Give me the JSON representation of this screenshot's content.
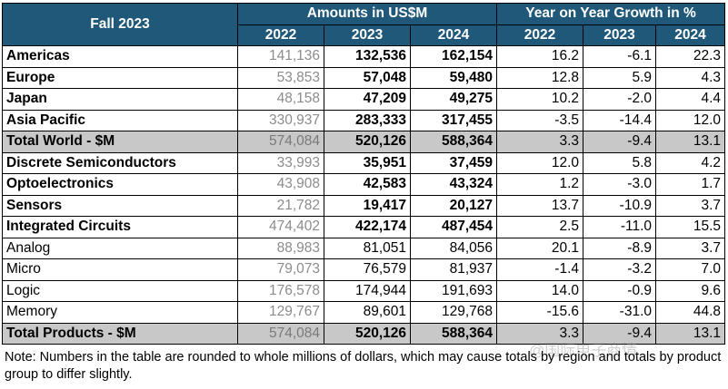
{
  "title": "Fall 2023",
  "group_amounts": "Amounts in US$M",
  "group_growth": "Year on Year Growth in %",
  "years": [
    "2022",
    "2023",
    "2024"
  ],
  "growth_years": [
    "2022",
    "2023",
    "2024"
  ],
  "rows": [
    {
      "label": "Americas",
      "a2022": "141,136",
      "a2023": "132,536",
      "a2024": "162,154",
      "g2022": "16.2",
      "g2023": "-6.1",
      "g2024": "22.3"
    },
    {
      "label": "Europe",
      "a2022": "53,853",
      "a2023": "57,048",
      "a2024": "59,480",
      "g2022": "12.8",
      "g2023": "5.9",
      "g2024": "4.3"
    },
    {
      "label": "Japan",
      "a2022": "48,158",
      "a2023": "47,209",
      "a2024": "49,275",
      "g2022": "10.2",
      "g2023": "-2.0",
      "g2024": "4.4"
    },
    {
      "label": "Asia Pacific",
      "a2022": "330,937",
      "a2023": "283,333",
      "a2024": "317,455",
      "g2022": "-3.5",
      "g2023": "-14.4",
      "g2024": "12.0"
    },
    {
      "label": "Total World - $M",
      "a2022": "574,084",
      "a2023": "520,126",
      "a2024": "588,364",
      "g2022": "3.3",
      "g2023": "-9.4",
      "g2024": "13.1"
    },
    {
      "label": "Discrete Semiconductors",
      "a2022": "33,993",
      "a2023": "35,951",
      "a2024": "37,459",
      "g2022": "12.0",
      "g2023": "5.8",
      "g2024": "4.2"
    },
    {
      "label": "Optoelectronics",
      "a2022": "43,908",
      "a2023": "42,583",
      "a2024": "43,324",
      "g2022": "1.2",
      "g2023": "-3.0",
      "g2024": "1.7"
    },
    {
      "label": "Sensors",
      "a2022": "21,782",
      "a2023": "19,417",
      "a2024": "20,127",
      "g2022": "13.7",
      "g2023": "-10.9",
      "g2024": "3.7"
    },
    {
      "label": "Integrated Circuits",
      "a2022": "474,402",
      "a2023": "422,174",
      "a2024": "487,454",
      "g2022": "2.5",
      "g2023": "-11.0",
      "g2024": "15.5"
    },
    {
      "label": "Analog",
      "a2022": "88,983",
      "a2023": "81,051",
      "a2024": "84,056",
      "g2022": "20.1",
      "g2023": "-8.9",
      "g2024": "3.7"
    },
    {
      "label": "Micro",
      "a2022": "79,073",
      "a2023": "76,579",
      "a2024": "81,937",
      "g2022": "-1.4",
      "g2023": "-3.2",
      "g2024": "7.0"
    },
    {
      "label": "Logic",
      "a2022": "176,578",
      "a2023": "174,944",
      "a2024": "191,693",
      "g2022": "14.0",
      "g2023": "-0.9",
      "g2024": "9.6"
    },
    {
      "label": "Memory",
      "a2022": "129,767",
      "a2023": "89,601",
      "a2024": "129,768",
      "g2022": "-15.6",
      "g2023": "-31.0",
      "g2024": "44.8"
    },
    {
      "label": "Total Products - $M",
      "a2022": "574,084",
      "a2023": "520,126",
      "a2024": "588,364",
      "g2022": "3.3",
      "g2023": "-9.4",
      "g2024": "13.1"
    }
  ],
  "note": "Note: Numbers in the table are rounded to whole millions of dollars, which may cause totals by region and totals by product group to differ slightly.",
  "watermark": "@国际电子商情"
}
